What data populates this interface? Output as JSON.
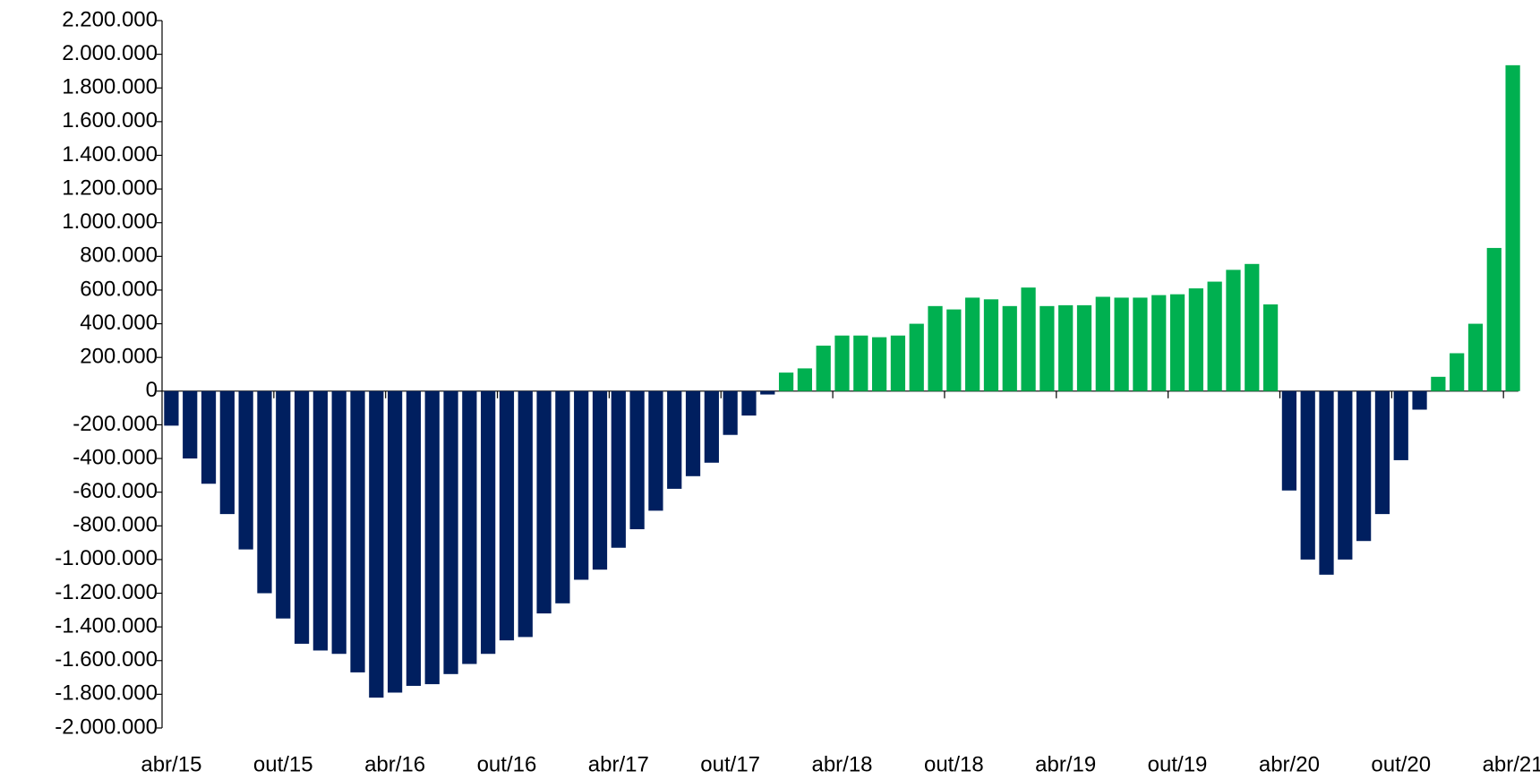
{
  "chart_data": {
    "type": "bar",
    "categories": [
      "abr/15",
      null,
      null,
      null,
      null,
      null,
      "out/15",
      null,
      null,
      null,
      null,
      null,
      "abr/16",
      null,
      null,
      null,
      null,
      null,
      "out/16",
      null,
      null,
      null,
      null,
      null,
      "abr/17",
      null,
      null,
      null,
      null,
      null,
      "out/17",
      null,
      null,
      null,
      null,
      null,
      "abr/18",
      null,
      null,
      null,
      null,
      null,
      "out/18",
      null,
      null,
      null,
      null,
      null,
      "abr/19",
      null,
      null,
      null,
      null,
      null,
      "out/19",
      null,
      null,
      null,
      null,
      null,
      "abr/20",
      null,
      null,
      null,
      null,
      null,
      "out/20",
      null,
      null,
      null,
      null,
      null,
      "abr/21"
    ],
    "values": [
      -205000,
      -400000,
      -550000,
      -730000,
      -940000,
      -1200000,
      -1350000,
      -1500000,
      -1540000,
      -1560000,
      -1670000,
      -1820000,
      -1790000,
      -1750000,
      -1740000,
      -1680000,
      -1620000,
      -1560000,
      -1480000,
      -1460000,
      -1320000,
      -1260000,
      -1120000,
      -1060000,
      -930000,
      -820000,
      -710000,
      -580000,
      -505000,
      -425000,
      -260000,
      -145000,
      -20000,
      110000,
      135000,
      270000,
      330000,
      330000,
      320000,
      330000,
      400000,
      505000,
      485000,
      555000,
      545000,
      505000,
      615000,
      505000,
      510000,
      510000,
      560000,
      555000,
      555000,
      570000,
      575000,
      610000,
      650000,
      720000,
      755000,
      515000,
      -590000,
      -1000000,
      -1090000,
      -1000000,
      -890000,
      -730000,
      -410000,
      -110000,
      85000,
      225000,
      400000,
      850000,
      1935000
    ],
    "positive_color": "#00b050",
    "negative_color": "#001f5f",
    "ylim": [
      -2000000,
      2200000
    ],
    "yticks": [
      {
        "value": -2000000,
        "label": "-2.000.000"
      },
      {
        "value": -1800000,
        "label": "-1.800.000"
      },
      {
        "value": -1600000,
        "label": "-1.600.000"
      },
      {
        "value": -1400000,
        "label": "-1.400.000"
      },
      {
        "value": -1200000,
        "label": "-1.200.000"
      },
      {
        "value": -1000000,
        "label": "-1.000.000"
      },
      {
        "value": -800000,
        "label": "-800.000"
      },
      {
        "value": -600000,
        "label": "-600.000"
      },
      {
        "value": -400000,
        "label": "-400.000"
      },
      {
        "value": -200000,
        "label": "-200.000"
      },
      0,
      {
        "value": 200000,
        "label": "200.000"
      },
      {
        "value": 400000,
        "label": "400.000"
      },
      {
        "value": 600000,
        "label": "600.000"
      },
      {
        "value": 800000,
        "label": "800.000"
      },
      {
        "value": 1000000,
        "label": "1.000.000"
      },
      {
        "value": 1200000,
        "label": "1.200.000"
      },
      {
        "value": 1400000,
        "label": "1.400.000"
      },
      {
        "value": 1600000,
        "label": "1.600.000"
      },
      {
        "value": 1800000,
        "label": "1.800.000"
      },
      {
        "value": 2000000,
        "label": "2.000.000"
      },
      {
        "value": 2200000,
        "label": "2.200.000"
      }
    ],
    "grid": false
  }
}
